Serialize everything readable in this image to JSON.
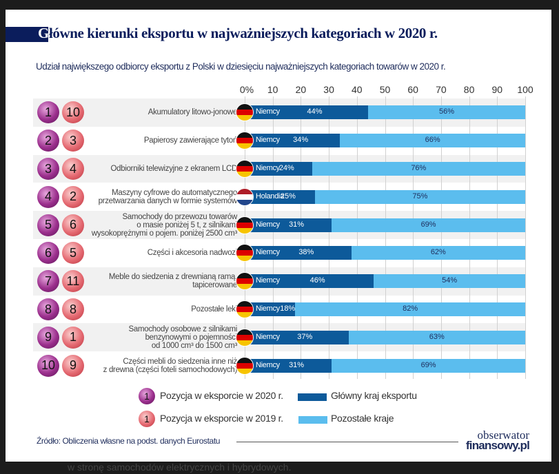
{
  "title": "Główne kierunki eksportu w najważniejszych kategoriach w 2020 r.",
  "title_first_letter": "G",
  "title_rest": "łówne kierunki eksportu w najważniejszych kategoriach w 2020 r.",
  "subtitle": "Udział największego odbiorcy eksportu z Polski w dziesięciu najważniejszych kategoriach towarów w 2020 r.",
  "bottom_text": "w stronę samochodów elektrycznych i hybrydowych.",
  "colors": {
    "main_country": "#0d5a9a",
    "other": "#5bbdee",
    "rank_2020": "#9b2f8d",
    "rank_2019": "#e56a72",
    "title": "#0b1d5c"
  },
  "chart_data": {
    "type": "bar",
    "stacked": true,
    "orientation": "horizontal",
    "xlim": [
      0,
      100
    ],
    "x_ticks": [
      "0%",
      "10",
      "20",
      "30",
      "40",
      "50",
      "60",
      "70",
      "80",
      "90",
      "100"
    ],
    "grid": true,
    "categories": [
      "Akumulatory litowo-jonowe",
      "Papierosy zawierające tytoń",
      "Odbiorniki telewizyjne z ekranem LCD",
      "Maszyny cyfrowe do automatycznego\nprzetwarzania danych w formie systemów",
      "Samochody do przewozu towarów\no masie poniżej 5 t, z silnikami\nwysokoprężnymi o pojem. poniżej 2500 cm³",
      "Części i akcesoria nadwozi",
      "Meble do siedzenia z drewnianą ramą,\ntapicerowane",
      "Pozostałe leki",
      "Samochody osobowe z silnikami\nbenzynowymi o pojemności\nod 1000 cm³ do 1500 cm³",
      "Części mebli do siedzenia inne niż\nz drewna (części foteli samochodowych)"
    ],
    "rank_2020": [
      1,
      2,
      3,
      4,
      5,
      6,
      7,
      8,
      9,
      10
    ],
    "rank_2019": [
      10,
      3,
      4,
      2,
      6,
      5,
      11,
      8,
      1,
      9
    ],
    "countries": [
      "Niemcy",
      "Niemcy",
      "Niemcy",
      "Holandia",
      "Niemcy",
      "Niemcy",
      "Niemcy",
      "Niemcy",
      "Niemcy",
      "Niemcy"
    ],
    "flags": [
      "germany",
      "germany",
      "germany",
      "netherlands",
      "germany",
      "germany",
      "germany",
      "germany",
      "germany",
      "germany"
    ],
    "series": [
      {
        "name": "Główny kraj eksportu",
        "values": [
          44,
          34,
          24,
          25,
          31,
          38,
          46,
          18,
          37,
          31
        ],
        "labels": [
          "44%",
          "34%",
          "24%",
          "25%",
          "31%",
          "38%",
          "46%",
          "18%",
          "37%",
          "31%"
        ]
      },
      {
        "name": "Pozostałe kraje",
        "values": [
          56,
          66,
          76,
          75,
          69,
          62,
          54,
          82,
          63,
          69
        ],
        "labels": [
          "56%",
          "66%",
          "76%",
          "75%",
          "69%",
          "62%",
          "54%",
          "82%",
          "63%",
          "69%"
        ]
      }
    ],
    "legend": {
      "rank_2020": "Pozycja w eksporcie w 2020 r.",
      "rank_2019": "Pozycja w eksporcie w 2019 r.",
      "rank_example": "1",
      "main": "Główny kraj eksportu",
      "other": "Pozostałe kraje",
      "placement": "bottom"
    }
  },
  "source": "Źródło: Obliczenia własne na podst. danych Eurostatu",
  "logo": {
    "line1": "obserwator",
    "line2": "finansowy.pl"
  }
}
